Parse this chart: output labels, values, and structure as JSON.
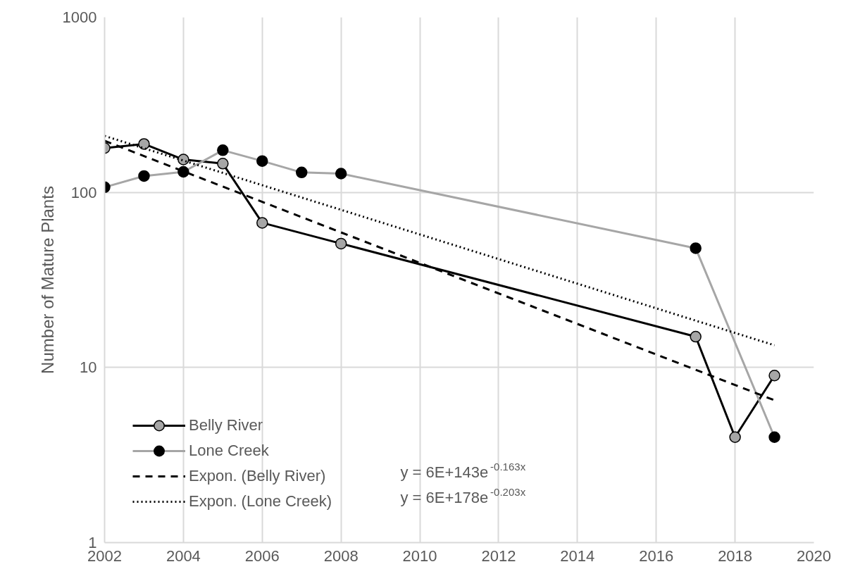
{
  "chart_data": {
    "type": "line",
    "ylabel": "Number of Mature Plants",
    "log": "y",
    "grid": true,
    "legend": "bottom left",
    "marker": "circle",
    "xlim": [
      2002,
      2020
    ],
    "xticks": [
      2002,
      2004,
      2006,
      2008,
      2010,
      2012,
      2014,
      2016,
      2018,
      2020
    ],
    "ylim": [
      1,
      1000
    ],
    "yticks": [
      1,
      10,
      100,
      1000
    ],
    "series": [
      {
        "name": "Belly River",
        "color": "#000000",
        "colors": [
          "#a6a6a6",
          "#a6a6a6",
          "#a6a6a6",
          "#a6a6a6",
          "#a6a6a6",
          "#a6a6a6",
          "#a6a6a6",
          "#a6a6a6",
          "#a6a6a6"
        ],
        "x": [
          2002,
          2003,
          2004,
          2005,
          2006,
          2008,
          2017,
          2018,
          2019
        ],
        "values": [
          179,
          189,
          154,
          146,
          67,
          51,
          15,
          4,
          9
        ],
        "line_style": "solid"
      },
      {
        "name": "Lone Creek",
        "color": "#a6a6a6",
        "colors": [
          "#000000",
          "#000000",
          "#000000",
          "#000000",
          "#000000",
          "#000000",
          "#000000",
          "#000000",
          "#000000"
        ],
        "x": [
          2002,
          2003,
          2004,
          2005,
          2006,
          2007,
          2008,
          2017,
          2019
        ],
        "values": [
          107,
          124,
          131,
          174,
          151,
          130,
          128,
          48,
          4
        ],
        "line_style": "solid"
      },
      {
        "name": "Expon. (Belly River)",
        "color": "#000000",
        "x": [
          2002,
          2019
        ],
        "values": [
          197,
          6.5
        ],
        "marker": "none",
        "line_style": "dashed"
      },
      {
        "name": "Expon. (Lone Creek)",
        "color": "#000000",
        "x": [
          2002,
          2019
        ],
        "values": [
          210,
          13.4
        ],
        "marker": "none",
        "line_style": "dotted"
      }
    ],
    "annotations": [
      "y = 6E+143e$^{-0.163x}$",
      "y = 6E+178e$^{-0.203x}$"
    ]
  }
}
